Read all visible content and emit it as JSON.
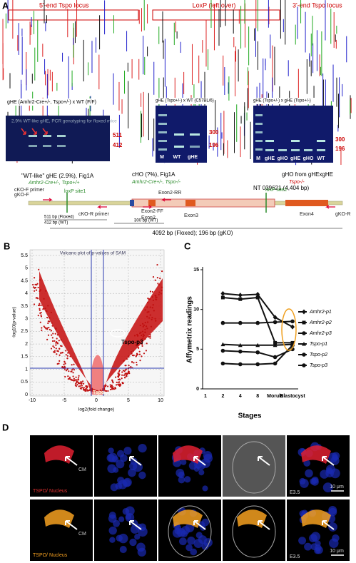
{
  "panel_a": {
    "label": "A",
    "locus_5": "5'-end Tspo locus",
    "loxp": "LoxP (left over)",
    "locus_3": "3'-end Tspo locus",
    "gel1_title": "gHE (Amhr2-Cre+/-, Tspo+/-) x WT (F/F)",
    "gel1_note": "2.9% WT-like gHE, PCR genotyping for floxed mice",
    "gel1_bands": [
      "511",
      "412"
    ],
    "gel2_title": "gHE (Tspo+/-) x WT (C57BL/6)",
    "gel2_bands": [
      "300",
      "196"
    ],
    "gel2_lanes": [
      "M",
      "WT",
      "gHE"
    ],
    "gel3_title": "gHE (Tspo+/-) x gHE (Tspo+/-)",
    "gel3_bands": [
      "300",
      "196"
    ],
    "gel3_lanes": [
      "M",
      "gHE",
      "gHO",
      "gHE",
      "gHO",
      "WT"
    ],
    "scheme": {
      "wt_like": "\"WT-like\" gHE (2.9%), Fig1A",
      "wt_like_geno": "Amhr2-Cre+/-, Tspo+/+",
      "cho": "cHO (?%), Fig1A",
      "cho_geno": "Amhr2-Cre+/-, Tspo-/-",
      "gho": "gHO from gHExgHE",
      "gho_geno": "Tspo-/-",
      "nt": "NT 039621 (4,404 bp)",
      "primers": [
        "cKO-F primer",
        "gKO-F",
        "loxP site1",
        "cKO-R primer",
        "Exon2-RR",
        "Exon2-FF",
        "Exon2",
        "Exon3",
        "loxP site2",
        "Exon4",
        "gKO-R"
      ],
      "sizes": [
        "511 bp (Floxed)",
        "412 bp (WT)",
        "300 bp (WT)"
      ],
      "total": "4092 bp (Floxed); 196 bp (gKO)"
    }
  },
  "panel_b": {
    "label": "B",
    "title": "Volcano plot of p-values of SAM",
    "x_label": "log2(fold change)",
    "y_label": "-log10(p-value)",
    "annotation_p3": "Tspo-p3",
    "annotation_tspo": "Tspo",
    "xticks": [
      -10,
      -5,
      0,
      5,
      10
    ],
    "yticks": [
      0,
      0.5,
      1,
      1.5,
      2,
      2.5,
      3,
      3.5,
      4,
      4.5,
      5,
      5.5
    ]
  },
  "chart_data": {
    "type": "line",
    "label": "C",
    "x_label": "Stages",
    "y_label": "Affymetrix readings",
    "categories": [
      "1",
      "2",
      "4",
      "8",
      "Morula",
      "Blastocyst"
    ],
    "ylim": [
      0,
      15
    ],
    "yticks": [
      0,
      5,
      10,
      15
    ],
    "series": [
      {
        "name": "Amhr2-p1",
        "color": "#111111",
        "values": [
          null,
          12,
          11.8,
          11.9,
          9,
          7.8
        ]
      },
      {
        "name": "Amhr2-p2",
        "color": "#111111",
        "values": [
          null,
          11.5,
          11.3,
          11.5,
          5.8,
          5.8
        ]
      },
      {
        "name": "Amhr2-p3",
        "color": "#111111",
        "values": [
          null,
          8.3,
          8.3,
          8.3,
          8.4,
          8.5
        ]
      },
      {
        "name": "Tspo-p1",
        "color": "#111111",
        "values": [
          null,
          5.6,
          5.5,
          5.5,
          5.5,
          5.6
        ]
      },
      {
        "name": "Tspo-p2",
        "color": "#111111",
        "values": [
          null,
          4.8,
          4.7,
          4.6,
          4.0,
          5.0
        ]
      },
      {
        "name": "Tspo-p3",
        "color": "#111111",
        "values": [
          null,
          3.2,
          3.1,
          3.1,
          3.2,
          5.5
        ]
      }
    ]
  },
  "panel_d": {
    "label": "D",
    "row1_stain": "TSPO/ Nucleus",
    "row2_stain": "TSPO/ Nucleus",
    "cm": [
      "CM",
      "CM"
    ],
    "stage": [
      "E3.5",
      "E3.5"
    ],
    "scale": [
      "10 μm",
      "10 μm"
    ]
  }
}
